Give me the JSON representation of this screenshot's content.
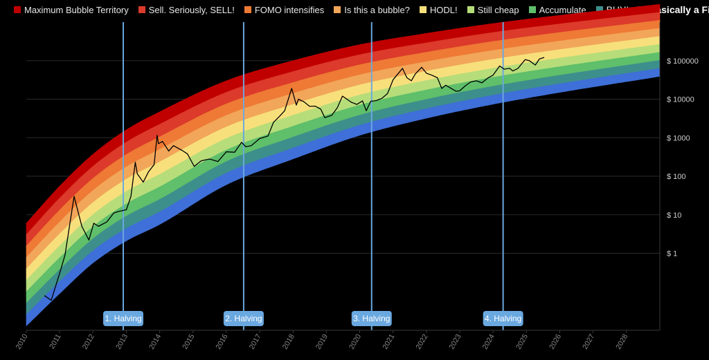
{
  "chart_data": {
    "type": "area",
    "title": "",
    "xlabel": "",
    "ylabel": "",
    "y_scale": "log",
    "ylim": [
      0.01,
      1000000
    ],
    "xlim": [
      "2010-01-01",
      "2029-01-01"
    ],
    "legend_position": "top",
    "grid": "horizontal",
    "bands": [
      {
        "name": "Maximum Bubble Territory",
        "color": "#c00000"
      },
      {
        "name": "Sell. Seriously, SELL!",
        "color": "#dc3a2a"
      },
      {
        "name": "FOMO intensifies",
        "color": "#ee7a35"
      },
      {
        "name": "Is this a bubble?",
        "color": "#f2a65a"
      },
      {
        "name": "HODL!",
        "color": "#f7e07c"
      },
      {
        "name": "Still cheap",
        "color": "#b6dd7a"
      },
      {
        "name": "Accumulate",
        "color": "#5fbf6a"
      },
      {
        "name": "BUY!",
        "color": "#3d8f8c"
      },
      {
        "name": "Basically a Fire Sale",
        "color": "#3f6fd8"
      }
    ],
    "band_edges": {
      "x": [
        "2010-01-01",
        "2011-01-01",
        "2012-01-01",
        "2013-01-01",
        "2014-01-01",
        "2016-01-01",
        "2018-01-01",
        "2020-01-01",
        "2022-01-01",
        "2024-01-01",
        "2026-01-01",
        "2029-01-01"
      ],
      "lower": [
        0.013,
        0.09,
        0.56,
        2.1,
        5.6,
        60,
        280,
        1150,
        3200,
        7400,
        15000,
        39000
      ],
      "upper": [
        6,
        55,
        370,
        1600,
        4700,
        30000,
        100000,
        260000,
        510000,
        920000,
        1500000,
        2900000
      ]
    },
    "y_ticks": [
      "$ 1",
      "$ 10",
      "$ 100",
      "$ 1000",
      "$ 10000",
      "$ 100000"
    ],
    "y_tick_values": [
      1,
      10,
      100,
      1000,
      10000,
      100000
    ],
    "x_ticks": [
      "2010",
      "2011",
      "2012",
      "2013",
      "2014",
      "2015",
      "2016",
      "2017",
      "2018",
      "2019",
      "2020",
      "2021",
      "2022",
      "2023",
      "2024",
      "2025",
      "2026",
      "2027",
      "2028"
    ],
    "halvings": [
      {
        "label": "1. Halving",
        "date": "2012-11-28"
      },
      {
        "label": "2. Halving",
        "date": "2016-07-09"
      },
      {
        "label": "3. Halving",
        "date": "2020-05-11"
      },
      {
        "label": "4. Halving",
        "date": "2024-04-20"
      }
    ],
    "series": [
      {
        "color": "#000000",
        "x": [
          "2010-07-18",
          "2010-10-01",
          "2011-01-01",
          "2011-03-01",
          "2011-06-08",
          "2011-09-01",
          "2011-11-18",
          "2012-01-10",
          "2012-03-01",
          "2012-06-01",
          "2012-08-15",
          "2012-10-01",
          "2013-01-01",
          "2013-02-20",
          "2013-04-09",
          "2013-05-01",
          "2013-07-05",
          "2013-09-01",
          "2013-11-01",
          "2013-12-04",
          "2013-12-18",
          "2014-02-01",
          "2014-04-10",
          "2014-06-01",
          "2014-09-01",
          "2014-11-01",
          "2015-01-14",
          "2015-04-01",
          "2015-07-01",
          "2015-10-01",
          "2016-01-01",
          "2016-04-01",
          "2016-06-16",
          "2016-08-01",
          "2016-10-01",
          "2017-01-01",
          "2017-04-01",
          "2017-06-01",
          "2017-08-01",
          "2017-10-01",
          "2017-12-17",
          "2018-02-06",
          "2018-03-01",
          "2018-05-01",
          "2018-07-01",
          "2018-09-01",
          "2018-11-01",
          "2018-12-15",
          "2019-03-01",
          "2019-05-01",
          "2019-06-26",
          "2019-08-01",
          "2019-10-01",
          "2019-12-01",
          "2020-02-01",
          "2020-03-13",
          "2020-05-01",
          "2020-07-01",
          "2020-09-01",
          "2020-11-01",
          "2021-01-01",
          "2021-04-14",
          "2021-06-01",
          "2021-07-20",
          "2021-09-01",
          "2021-11-10",
          "2022-01-01",
          "2022-03-01",
          "2022-05-01",
          "2022-06-18",
          "2022-08-01",
          "2022-11-21",
          "2023-01-01",
          "2023-03-01",
          "2023-05-01",
          "2023-07-01",
          "2023-09-01",
          "2023-11-01",
          "2024-01-01",
          "2024-03-14",
          "2024-05-01",
          "2024-07-01",
          "2024-08-05",
          "2024-10-01",
          "2024-12-17",
          "2025-02-01",
          "2025-04-08",
          "2025-05-22",
          "2025-07-14"
        ],
        "values": [
          0.08,
          0.06,
          0.3,
          0.9,
          30,
          5,
          2.2,
          6,
          5,
          6.5,
          11,
          12,
          13.5,
          30,
          230,
          115,
          70,
          130,
          200,
          1150,
          700,
          800,
          450,
          620,
          470,
          380,
          180,
          250,
          280,
          240,
          430,
          420,
          760,
          580,
          620,
          950,
          1100,
          2500,
          3500,
          5000,
          19000,
          7000,
          10000,
          8500,
          6500,
          6600,
          5500,
          3300,
          3800,
          6000,
          12000,
          10500,
          8300,
          7300,
          9000,
          5000,
          8800,
          9200,
          10500,
          14000,
          32000,
          63000,
          36000,
          30000,
          45000,
          67000,
          47000,
          42000,
          36000,
          19000,
          23000,
          16000,
          16500,
          22000,
          28000,
          30000,
          26500,
          35000,
          42000,
          73000,
          60000,
          63000,
          54000,
          63000,
          106000,
          100000,
          77000,
          110000,
          121000
        ]
      }
    ]
  }
}
